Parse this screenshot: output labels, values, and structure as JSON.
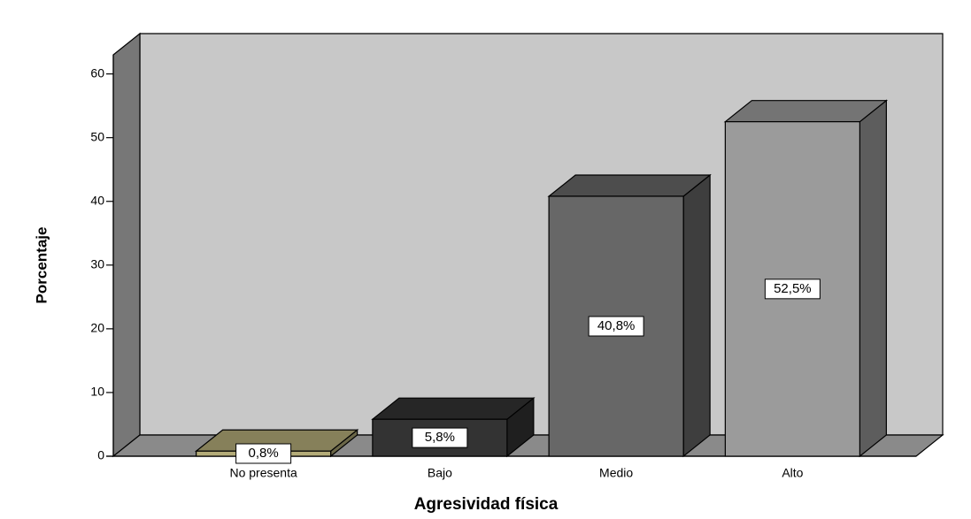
{
  "chart_data": {
    "type": "bar3d",
    "y_label": "Porcentaje",
    "x_label": "Agresividad física",
    "categories": [
      "No presenta",
      "Bajo",
      "Medio",
      "Alto"
    ],
    "values": [
      0.8,
      5.8,
      40.8,
      52.5
    ],
    "value_labels": [
      "0,8%",
      "5,8%",
      "40,8%",
      "52,5%"
    ],
    "colors": [
      "#b3ab78",
      "#333333",
      "#676767",
      "#9b9b9b"
    ],
    "ylim": [
      0,
      63
    ],
    "yticks": [
      0,
      10,
      20,
      30,
      40,
      50,
      60
    ]
  }
}
